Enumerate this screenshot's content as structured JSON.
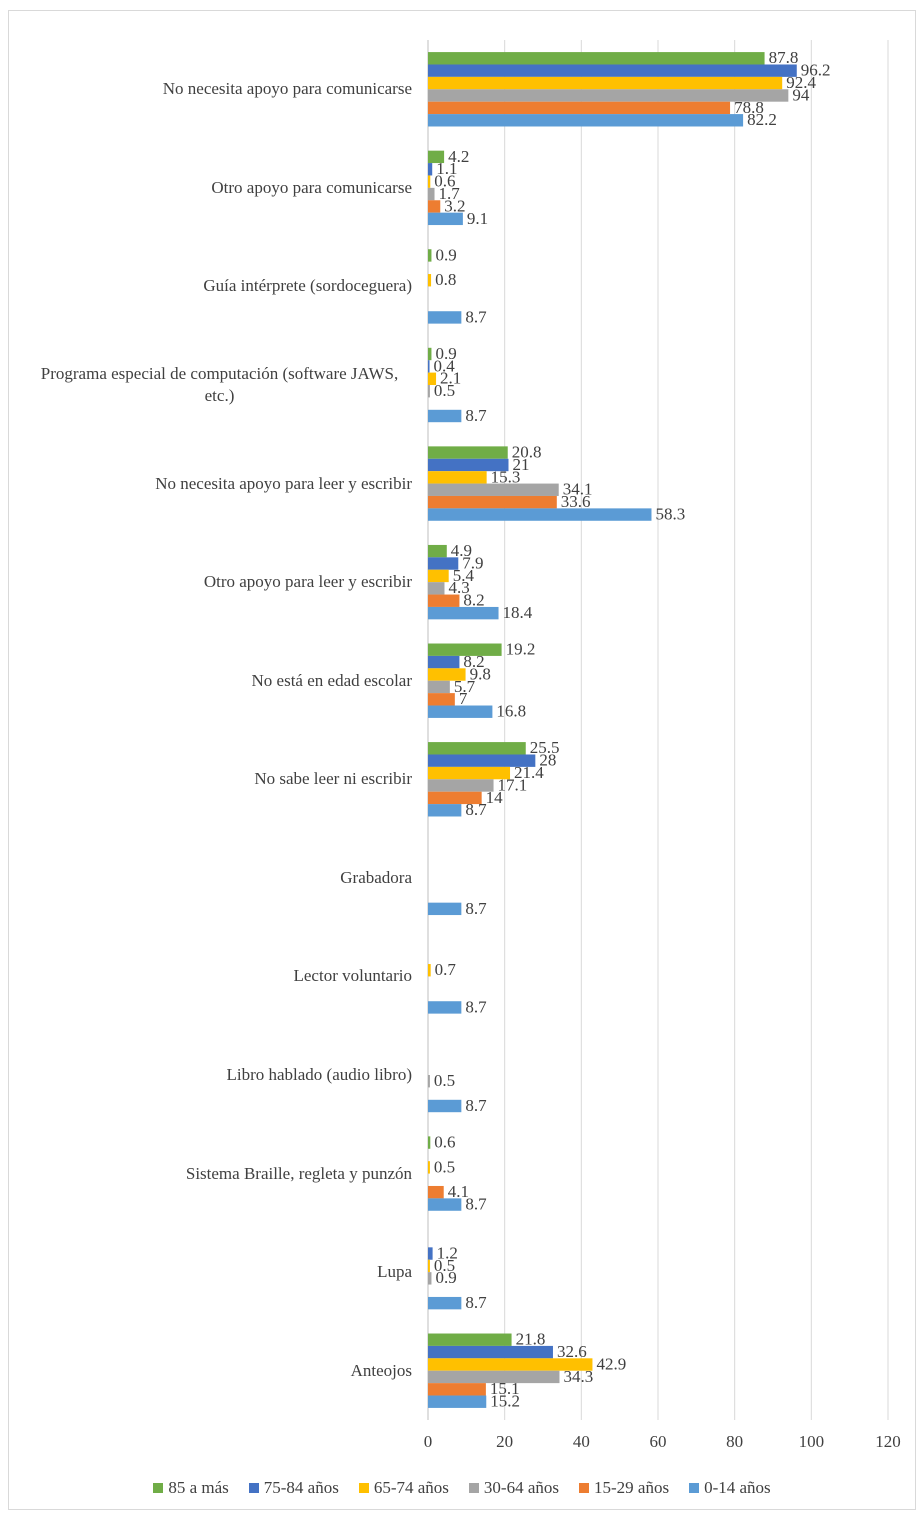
{
  "chart_data": {
    "type": "bar",
    "orientation": "horizontal",
    "categories": [
      "No necesita apoyo para comunicarse",
      "Otro apoyo para comunicarse",
      "Guía intérprete (sordoceguera)",
      "Programa especial de computación (software JAWS, etc.)",
      "No necesita apoyo para leer y escribir",
      "Otro apoyo para leer y escribir",
      "No está en edad escolar",
      "No sabe leer ni escribir",
      "Grabadora",
      "Lector voluntario",
      "Libro hablado (audio libro)",
      "Sistema Braille, regleta y punzón",
      "Lupa",
      "Anteojos"
    ],
    "series": [
      {
        "name": "85 a más",
        "color": "#70ad47",
        "values": [
          87.8,
          4.2,
          0.9,
          0.9,
          20.8,
          4.9,
          19.2,
          25.5,
          null,
          null,
          null,
          0.6,
          null,
          21.8
        ]
      },
      {
        "name": "75-84 años",
        "color": "#4472c4",
        "values": [
          96.2,
          1.1,
          null,
          0.4,
          21,
          7.9,
          8.2,
          28,
          null,
          null,
          null,
          null,
          1.2,
          32.6
        ]
      },
      {
        "name": "65-74 años",
        "color": "#ffc000",
        "values": [
          92.4,
          0.6,
          0.8,
          2.1,
          15.3,
          5.4,
          9.8,
          21.4,
          null,
          0.7,
          null,
          0.5,
          0.5,
          42.9
        ]
      },
      {
        "name": "30-64 años",
        "color": "#a5a5a5",
        "values": [
          94,
          1.7,
          null,
          0.5,
          34.1,
          4.3,
          5.7,
          17.1,
          null,
          null,
          0.5,
          null,
          0.9,
          34.3
        ]
      },
      {
        "name": "15-29 años",
        "color": "#ed7d31",
        "values": [
          78.8,
          3.2,
          null,
          null,
          33.6,
          8.2,
          7,
          14,
          null,
          null,
          null,
          4.1,
          null,
          15.1
        ]
      },
      {
        "name": "0-14 años",
        "color": "#5b9bd5",
        "values": [
          82.2,
          9.1,
          8.7,
          8.7,
          58.3,
          18.4,
          16.8,
          8.7,
          8.7,
          8.7,
          8.7,
          8.7,
          8.7,
          15.2
        ]
      }
    ],
    "xlim": [
      0,
      120
    ],
    "xticks": [
      0,
      20,
      40,
      60,
      80,
      100,
      120
    ],
    "grid": true,
    "legend": "bottom"
  }
}
